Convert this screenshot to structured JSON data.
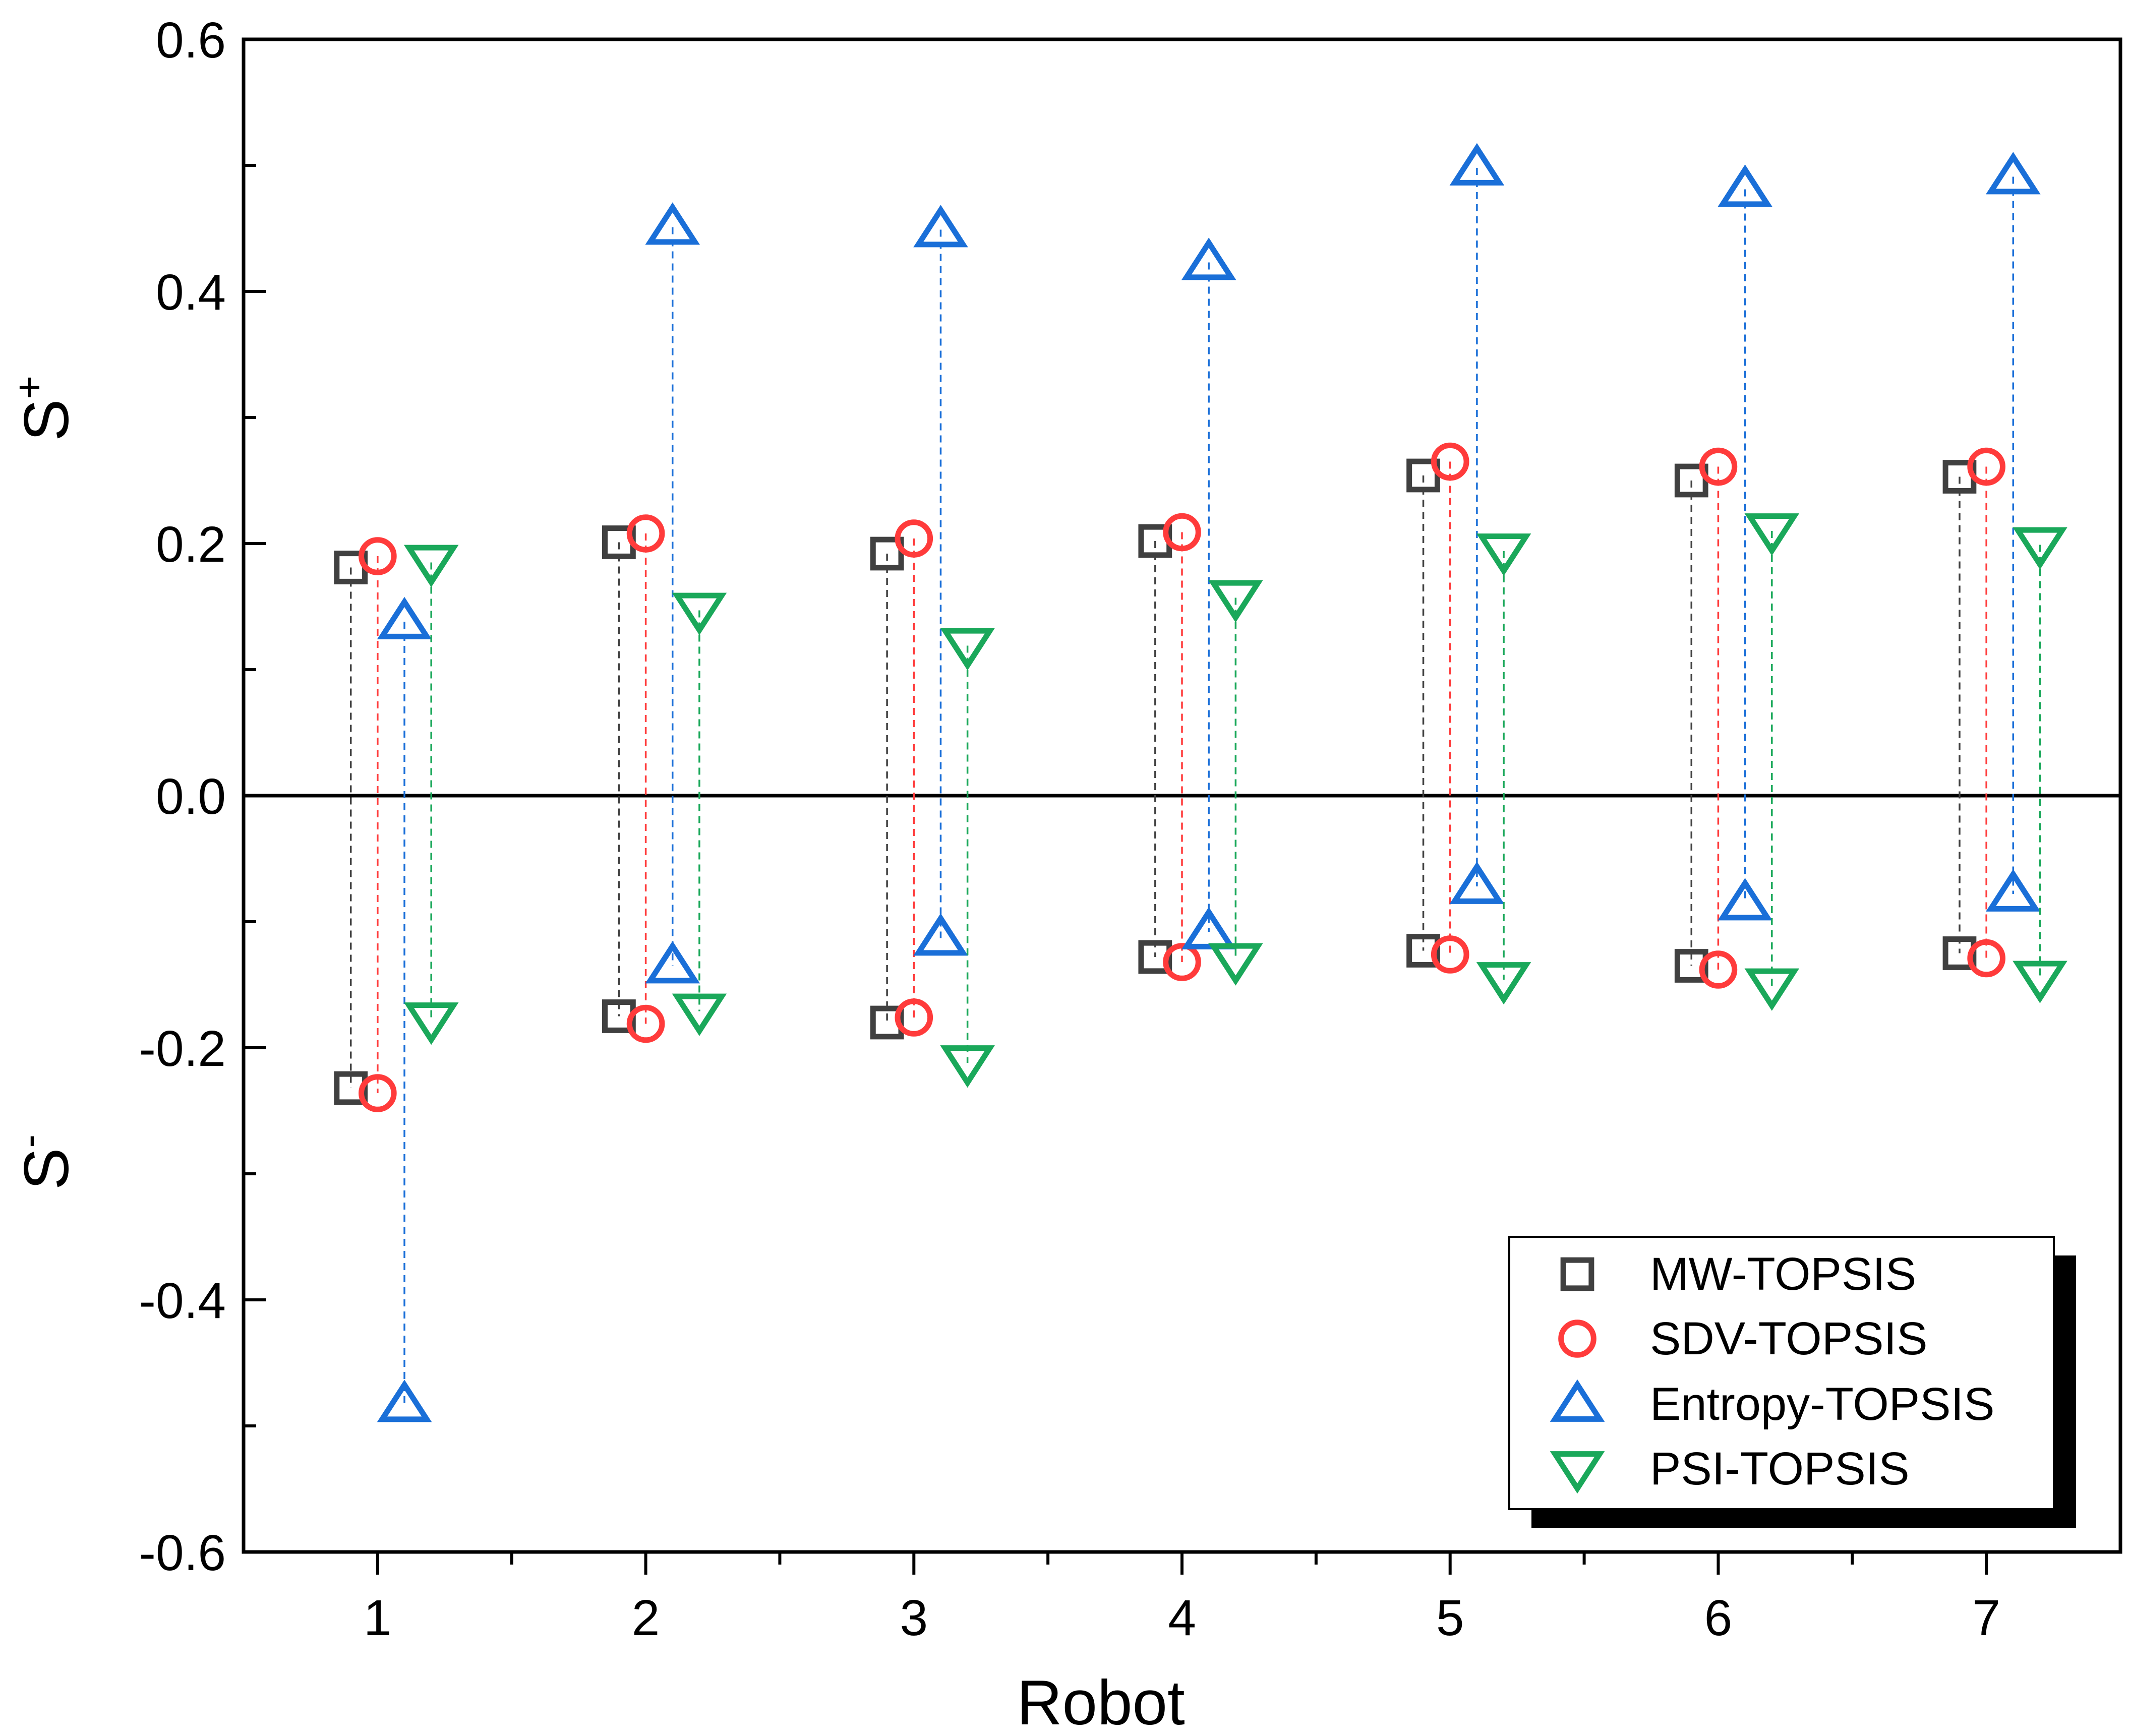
{
  "chart_data": {
    "type": "scatter",
    "title": "",
    "xlabel": "Robot",
    "ylabel_upper": "S",
    "ylabel_upper_sup": "+",
    "ylabel_lower": "S",
    "ylabel_lower_sup": "-",
    "categories": [
      "1",
      "2",
      "3",
      "4",
      "5",
      "6",
      "7"
    ],
    "xlim": [
      0.5,
      7.5
    ],
    "ylim": [
      -0.6,
      0.6
    ],
    "yticks": [
      -0.6,
      -0.4,
      -0.2,
      0.0,
      0.2,
      0.4,
      0.6
    ],
    "ytick_labels": [
      "-0.6",
      "-0.4",
      "-0.2",
      "0.0",
      "0.2",
      "0.4",
      "0.6"
    ],
    "reference_line": 0.0,
    "legend_position": "bottom-right",
    "series": [
      {
        "name": "MW-TOPSIS",
        "marker": "square",
        "color": "#404040",
        "offset": -0.1,
        "s_plus": [
          0.181,
          0.201,
          0.192,
          0.202,
          0.254,
          0.25,
          0.253
        ],
        "s_minus": [
          -0.232,
          -0.175,
          -0.18,
          -0.128,
          -0.123,
          -0.135,
          -0.125
        ]
      },
      {
        "name": "SDV-TOPSIS",
        "marker": "circle",
        "color": "#ff3b3b",
        "offset": 0.0,
        "s_plus": [
          0.19,
          0.208,
          0.204,
          0.209,
          0.265,
          0.261,
          0.261
        ],
        "s_minus": [
          -0.236,
          -0.181,
          -0.176,
          -0.132,
          -0.126,
          -0.138,
          -0.129
        ]
      },
      {
        "name": "Entropy-TOPSIS",
        "marker": "triangle-up",
        "color": "#1a6fd8",
        "offset": 0.1,
        "s_plus": [
          0.138,
          0.451,
          0.449,
          0.423,
          0.498,
          0.481,
          0.491
        ],
        "s_minus": [
          -0.483,
          -0.135,
          -0.113,
          -0.108,
          -0.072,
          -0.085,
          -0.078
        ]
      },
      {
        "name": "PSI-TOPSIS",
        "marker": "triangle-down",
        "color": "#1aa85a",
        "offset": 0.2,
        "s_plus": [
          0.185,
          0.147,
          0.119,
          0.157,
          0.194,
          0.21,
          0.199
        ],
        "s_minus": [
          -0.178,
          -0.171,
          -0.212,
          -0.131,
          -0.146,
          -0.151,
          -0.145
        ]
      }
    ]
  }
}
